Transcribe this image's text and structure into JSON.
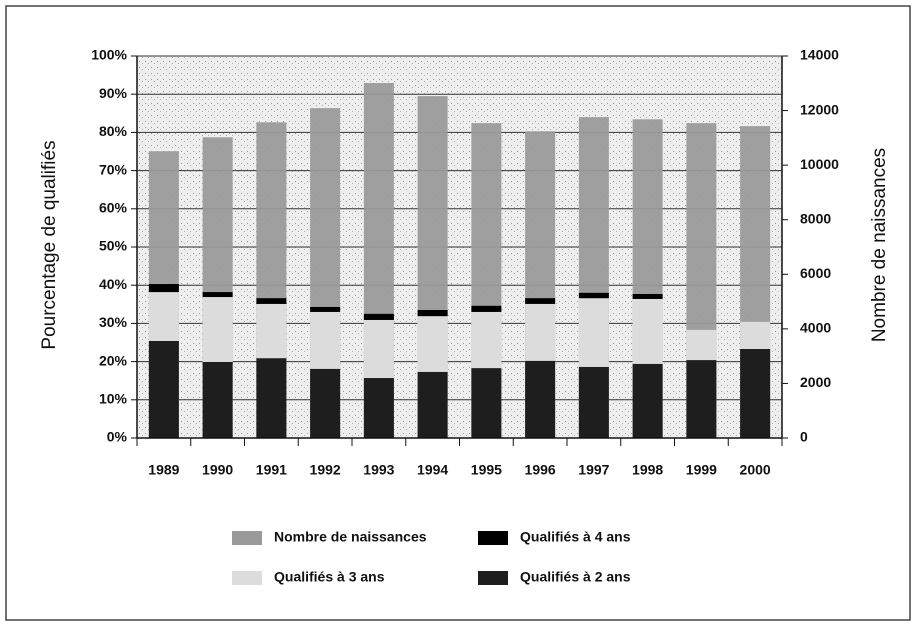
{
  "chart_data": {
    "type": "bar",
    "categories": [
      "1989",
      "1990",
      "1991",
      "1992",
      "1993",
      "1994",
      "1995",
      "1996",
      "1997",
      "1998",
      "1999",
      "2000"
    ],
    "series": [
      {
        "name": "Nombre de naissances",
        "color": "#9a9a9a",
        "axis": "y2",
        "values": [
          10510,
          11020,
          11570,
          12090,
          13010,
          12530,
          11540,
          11240,
          11760,
          11680,
          11540,
          11430
        ]
      },
      {
        "name": "Qualifiés à 2 ans",
        "color": "#1e1e1e",
        "values": [
          25.4,
          19.9,
          20.9,
          18.1,
          15.7,
          17.3,
          18.3,
          20.2,
          18.6,
          19.4,
          20.4,
          23.3
        ]
      },
      {
        "name": "Qualifiés à 3 ans",
        "color": "#dcdcdc",
        "values": [
          12.8,
          17.0,
          14.2,
          14.9,
          15.2,
          14.6,
          14.7,
          14.9,
          18.0,
          17.0,
          7.9,
          7.1
        ]
      },
      {
        "name": "Qualifiés à 4 ans",
        "color": "#000000",
        "values": [
          2.1,
          1.3,
          1.5,
          1.3,
          1.6,
          1.6,
          1.6,
          1.5,
          1.4,
          1.3,
          0,
          0
        ]
      }
    ],
    "y_label": "Pourcentage de qualifiés",
    "y2_label": "Nombre de naissances",
    "ylim": [
      0,
      100
    ],
    "yticks": [
      {
        "value": 0,
        "label": "0%"
      },
      {
        "value": 10,
        "label": "10%"
      },
      {
        "value": 20,
        "label": "20%"
      },
      {
        "value": 30,
        "label": "30%"
      },
      {
        "value": 40,
        "label": "40%"
      },
      {
        "value": 50,
        "label": "50%"
      },
      {
        "value": 60,
        "label": "60%"
      },
      {
        "value": 70,
        "label": "70%"
      },
      {
        "value": 80,
        "label": "80%"
      },
      {
        "value": 90,
        "label": "90%"
      },
      {
        "value": 100,
        "label": "100%"
      }
    ],
    "y2lim": [
      0,
      14000
    ],
    "y2ticks": [
      0,
      2000,
      4000,
      6000,
      8000,
      10000,
      12000,
      14000
    ],
    "grid": true,
    "legend": "bottom"
  }
}
